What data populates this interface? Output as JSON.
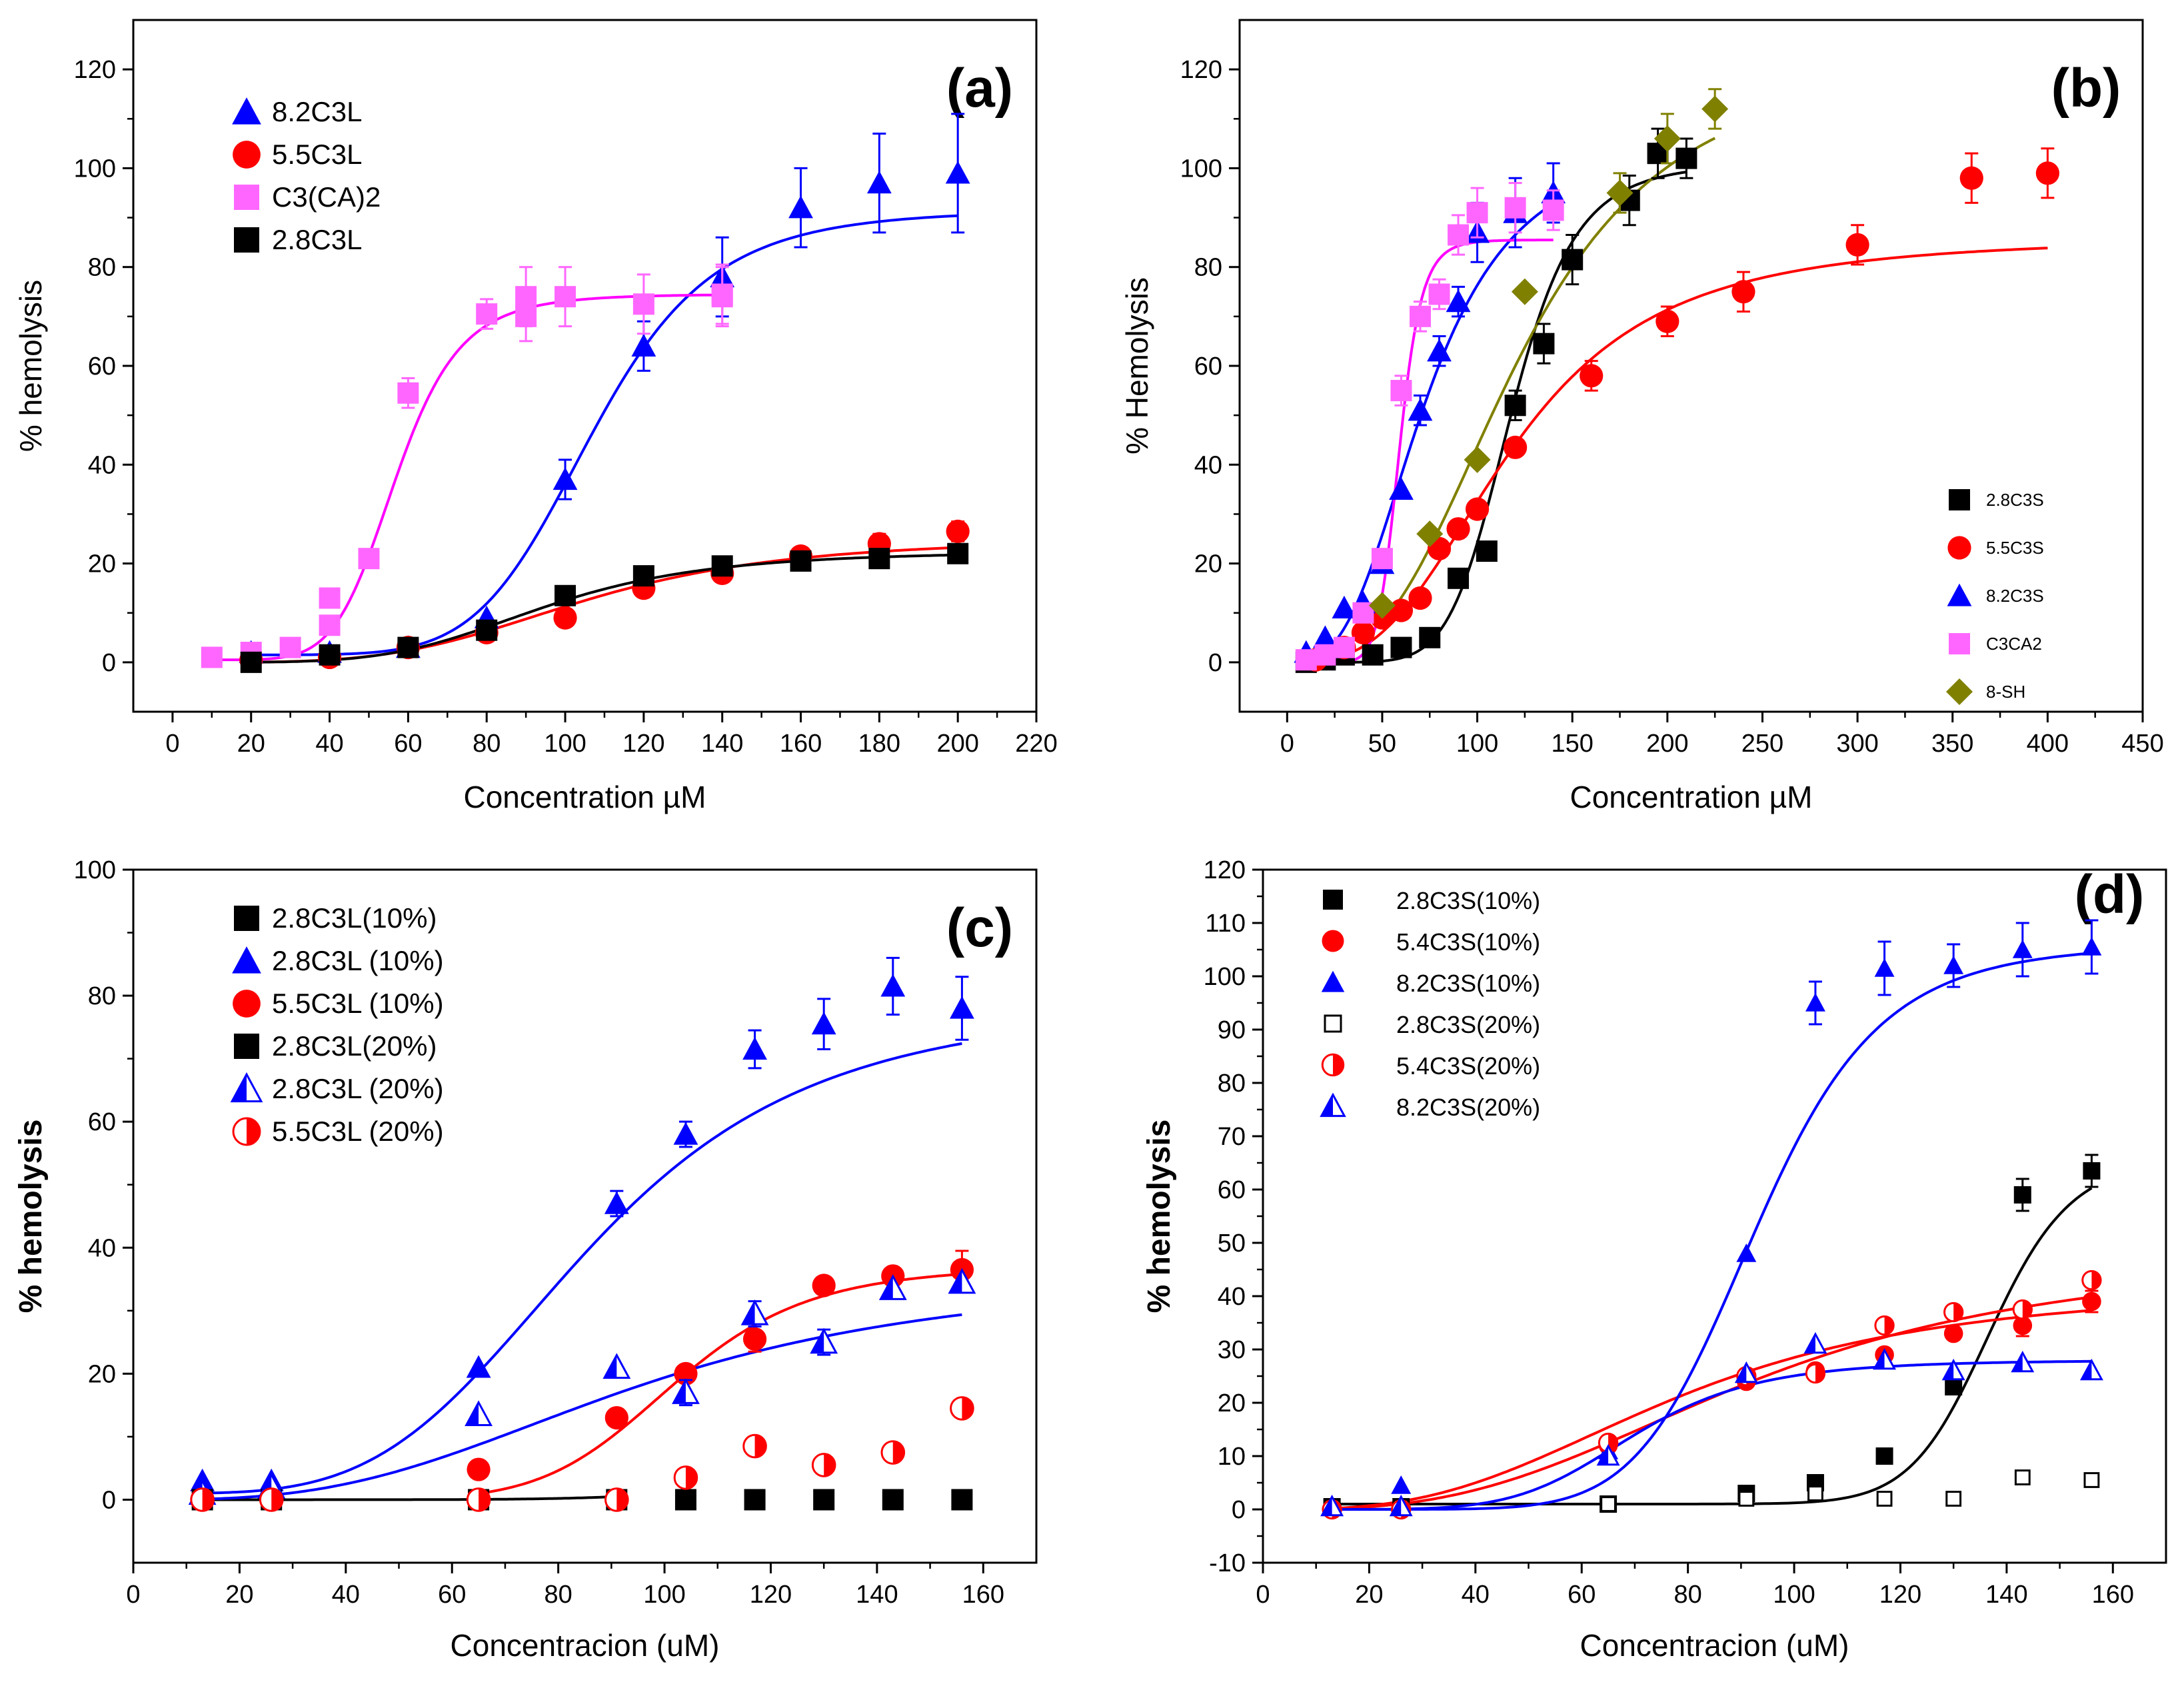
{
  "chart_data": [
    {
      "type": "scatter",
      "id": "a",
      "panel_label": "(a)",
      "xlabel": "Concentration µM",
      "ylabel": "% hemolysis",
      "xlim": [
        -10,
        220
      ],
      "ylim": [
        -10,
        130
      ],
      "xticks": [
        0,
        20,
        40,
        60,
        80,
        100,
        120,
        140,
        160,
        180,
        200,
        220
      ],
      "yticks": [
        0,
        20,
        40,
        60,
        80,
        100,
        120
      ],
      "legend": "top-left",
      "series": [
        {
          "name": "8.2C3L",
          "color": "#0000ff",
          "marker": "triangle",
          "x": [
            20,
            40,
            60,
            80,
            100,
            120,
            140,
            160,
            180,
            200
          ],
          "y": [
            2,
            2,
            3,
            9,
            37,
            64,
            78,
            92,
            97,
            99
          ],
          "err": [
            0,
            0,
            0,
            0,
            4,
            5,
            8,
            8,
            10,
            12
          ],
          "fit": {
            "bottom": 1.5,
            "top": 91.5,
            "x50": 107,
            "n": 7
          }
        },
        {
          "name": "5.5C3L",
          "color": "#ff0000",
          "marker": "circle",
          "x": [
            20,
            40,
            60,
            80,
            100,
            120,
            140,
            160,
            180,
            200
          ],
          "y": [
            0.5,
            1,
            3,
            6,
            9,
            15,
            18,
            21.5,
            24,
            26.5
          ],
          "err": [
            0,
            0,
            0,
            0,
            0,
            0,
            0,
            0,
            2,
            2
          ],
          "fit": {
            "bottom": 0,
            "top": 25,
            "x50": 105,
            "n": 4
          }
        },
        {
          "name": "C3(CA)2",
          "color": "#ff66ff",
          "fitColor": "#ff00ff",
          "marker": "square",
          "x": [
            10,
            20,
            30,
            40,
            40,
            50,
            60,
            80,
            90,
            90,
            100,
            120,
            140,
            140
          ],
          "y": [
            1,
            2,
            3,
            7.5,
            13,
            21,
            54.5,
            70.5,
            70,
            74,
            74,
            72.5,
            74.5,
            74
          ],
          "err": [
            0,
            0,
            0,
            0,
            0,
            0,
            3,
            3,
            5,
            6,
            6,
            6,
            6,
            6
          ],
          "fit": {
            "bottom": 0.5,
            "top": 74.5,
            "x50": 57,
            "n": 7
          }
        },
        {
          "name": "2.8C3L",
          "color": "#000000",
          "marker": "square",
          "x": [
            20,
            40,
            60,
            80,
            100,
            120,
            140,
            160,
            180,
            200
          ],
          "y": [
            0,
            1.5,
            3,
            6.5,
            13.5,
            17.5,
            19.5,
            20.5,
            21,
            22
          ],
          "err": [
            0,
            0,
            0,
            0,
            0,
            0,
            0,
            0,
            0,
            0
          ],
          "fit": {
            "bottom": 0,
            "top": 22.5,
            "x50": 95,
            "n": 4.5
          }
        }
      ]
    },
    {
      "type": "scatter",
      "id": "b",
      "panel_label": "(b)",
      "xlabel": "Concentration µM",
      "ylabel": "% Hemolysis",
      "xlim": [
        -25,
        450
      ],
      "ylim": [
        -10,
        130
      ],
      "xticks": [
        0,
        50,
        100,
        150,
        200,
        250,
        300,
        350,
        400,
        450
      ],
      "yticks": [
        0,
        20,
        40,
        60,
        80,
        100,
        120
      ],
      "legend": "bottom-right",
      "series": [
        {
          "name": "2.8C3S",
          "color": "#000000",
          "marker": "square",
          "x": [
            10,
            20,
            30,
            45,
            60,
            75,
            90,
            105,
            120,
            135,
            150,
            180,
            195,
            210
          ],
          "y": [
            0,
            0.5,
            1.5,
            1.5,
            3,
            5,
            17,
            22.5,
            52,
            64.5,
            81.5,
            93.5,
            103,
            102
          ],
          "err": [
            0,
            0,
            0,
            0,
            0,
            0,
            0,
            0,
            3,
            4,
            5,
            5,
            5,
            4
          ],
          "fit": {
            "bottom": 0,
            "top": 101,
            "x50": 118,
            "n": 7,
            "xmax": 210
          }
        },
        {
          "name": "5.5C3S",
          "color": "#ff0000",
          "marker": "circle",
          "x": [
            15,
            30,
            40,
            50,
            60,
            70,
            80,
            90,
            100,
            120,
            160,
            200,
            240,
            300,
            360,
            400
          ],
          "y": [
            0.5,
            3,
            6,
            9,
            10.5,
            13,
            23,
            27,
            31,
            43.5,
            58,
            69,
            75,
            84.5,
            98,
            99
          ],
          "err": [
            0,
            0,
            0,
            0,
            0,
            0,
            0,
            0,
            0,
            0,
            3,
            3,
            4,
            4,
            5,
            5
          ],
          "fit": {
            "bottom": 0,
            "top": 86,
            "x50": 118,
            "n": 3,
            "xmax": 400
          }
        },
        {
          "name": "8.2C3S",
          "color": "#0000ff",
          "marker": "triangle",
          "x": [
            10,
            20,
            30,
            40,
            50,
            60,
            70,
            80,
            90,
            100,
            120,
            140
          ],
          "y": [
            2,
            5,
            11,
            12,
            20,
            35,
            51,
            63,
            73,
            87,
            91,
            95
          ],
          "err": [
            0,
            0,
            0,
            0,
            0,
            0,
            3,
            3,
            3,
            6,
            7,
            6
          ],
          "fit": {
            "bottom": 0,
            "top": 106,
            "x50": 73,
            "n": 3,
            "xmax": 140
          }
        },
        {
          "name": "C3CA2",
          "color": "#ff66ff",
          "fitColor": "#ff00ff",
          "marker": "square",
          "x": [
            10,
            20,
            30,
            40,
            50,
            60,
            70,
            80,
            90,
            100,
            120,
            140
          ],
          "y": [
            0.5,
            1.5,
            3,
            10,
            21,
            55,
            70,
            74.5,
            86.5,
            91,
            92,
            91.5
          ],
          "err": [
            0,
            0,
            0,
            0,
            0,
            3,
            3,
            3,
            4,
            5,
            5,
            4
          ],
          "fit": {
            "bottom": 0,
            "top": 85.5,
            "x50": 59,
            "n": 10,
            "xmax": 140
          }
        },
        {
          "name": "8-SH",
          "color": "#808000",
          "marker": "diamond",
          "x": [
            50,
            75,
            100,
            125,
            175,
            200,
            225
          ],
          "y": [
            11.5,
            26,
            41,
            75,
            95,
            106,
            112
          ],
          "err": [
            0,
            0,
            0,
            0,
            4,
            5,
            4
          ],
          "fit": {
            "bottom": 0,
            "top": 123,
            "x50": 122,
            "n": 3,
            "xmax": 225
          }
        }
      ]
    },
    {
      "type": "scatter",
      "id": "c",
      "panel_label": "(c)",
      "xlabel": "Concentracion (uM)",
      "ylabel": "% hemolysis",
      "xlim": [
        0,
        170
      ],
      "ylim": [
        -10,
        100
      ],
      "xticks": [
        0,
        20,
        40,
        60,
        80,
        100,
        120,
        140,
        160
      ],
      "yticks": [
        0,
        20,
        40,
        60,
        80,
        100
      ],
      "legend": "top-left",
      "series": [
        {
          "name": "2.8C3L(10%)",
          "color": "#000000",
          "marker": "square",
          "x": [
            104,
            117,
            130,
            143,
            156
          ],
          "y": [
            0,
            0,
            0,
            0,
            0
          ],
          "err": [
            0,
            0,
            0,
            0,
            0
          ]
        },
        {
          "name": "2.8C3L (10%)",
          "color": "#0000ff",
          "marker": "triangle",
          "x": [
            13,
            26,
            65,
            91,
            104,
            117,
            130,
            143,
            156
          ],
          "y": [
            3,
            3,
            21,
            47,
            58,
            71.5,
            75.5,
            81.5,
            78
          ],
          "err": [
            0,
            0,
            0,
            2,
            2,
            3,
            4,
            4.5,
            5
          ],
          "fit": {
            "bottom": 1,
            "top": 79,
            "x50": 86,
            "n": 4
          }
        },
        {
          "name": "5.5C3L (10%)",
          "color": "#ff0000",
          "marker": "circle",
          "x": [
            65,
            91,
            104,
            117,
            130,
            143,
            156
          ],
          "y": [
            4.8,
            13,
            20,
            25.5,
            34,
            35.5,
            36.5
          ],
          "err": [
            0,
            0,
            0,
            2,
            0,
            0,
            3
          ],
          "fit": {
            "bottom": 0,
            "top": 37,
            "x50": 102,
            "n": 8
          }
        },
        {
          "name": "2.8C3L(20%)",
          "color": "#000000",
          "marker": "square",
          "x": [
            13,
            26,
            65,
            91
          ],
          "y": [
            0,
            0,
            0,
            0
          ],
          "err": [
            0,
            0,
            0,
            0
          ],
          "fit": {
            "bottom": 0,
            "top": 40,
            "x50": 170,
            "n": 7
          }
        },
        {
          "name": "2.8C3L (20%)",
          "color": "#0000ff",
          "marker": "half-triangle",
          "x": [
            13,
            26,
            65,
            91,
            104,
            117,
            130,
            143,
            156
          ],
          "y": [
            1,
            2,
            13.5,
            21,
            17,
            29.5,
            25,
            33.5,
            34.5
          ],
          "err": [
            0,
            0,
            0,
            0,
            2,
            2,
            2,
            0,
            0
          ],
          "fit": {
            "bottom": 0,
            "top": 36,
            "x50": 95,
            "n": 3
          }
        },
        {
          "name": "5.5C3L (20%)",
          "color": "#ff0000",
          "marker": "half-circle",
          "x": [
            13,
            26,
            65,
            91,
            104,
            117,
            130,
            143,
            156
          ],
          "y": [
            0,
            0,
            0,
            0,
            3.5,
            8.5,
            5.5,
            7.5,
            14.5
          ],
          "err": [
            0,
            0,
            0,
            0,
            0,
            0,
            0,
            0,
            0
          ]
        }
      ]
    },
    {
      "type": "scatter",
      "id": "d",
      "panel_label": "(d)",
      "xlabel": "Concentracion (uM)",
      "ylabel": "% hemolysis",
      "xlim": [
        0,
        170
      ],
      "ylim": [
        -10,
        120
      ],
      "xticks": [
        0,
        20,
        40,
        60,
        80,
        100,
        120,
        140,
        160
      ],
      "yticks": [
        -10,
        0,
        10,
        20,
        30,
        40,
        50,
        60,
        70,
        80,
        90,
        100,
        110,
        120
      ],
      "legend": "top-left",
      "series": [
        {
          "name": "2.8C3S(10%)",
          "color": "#000000",
          "marker": "square",
          "x": [
            13,
            26,
            65,
            91,
            104,
            117,
            130,
            143,
            156
          ],
          "y": [
            0.5,
            0.5,
            1,
            3,
            5,
            10,
            23,
            59,
            63.5
          ],
          "err": [
            0,
            0,
            0,
            0,
            0,
            0,
            0,
            3,
            3
          ],
          "fit": {
            "bottom": 1,
            "top": 66,
            "x50": 137,
            "n": 18
          }
        },
        {
          "name": "5.4C3S(10%)",
          "color": "#ff0000",
          "marker": "circle",
          "x": [
            13,
            26,
            65,
            91,
            104,
            117,
            130,
            143,
            156
          ],
          "y": [
            0,
            0,
            12,
            24,
            26,
            29,
            33,
            34.5,
            39
          ],
          "err": [
            0,
            0,
            0,
            0,
            0,
            0,
            0,
            2,
            2
          ],
          "fit": {
            "bottom": 0,
            "top": 42,
            "x50": 78,
            "n": 3
          }
        },
        {
          "name": "8.2C3S(10%)",
          "color": "#0000ff",
          "marker": "triangle",
          "x": [
            13,
            26,
            65,
            91,
            104,
            117,
            130,
            143,
            156
          ],
          "y": [
            0.5,
            4.5,
            11,
            48,
            95,
            101.5,
            102,
            105,
            105.5
          ],
          "err": [
            0,
            0,
            0,
            0,
            4,
            5,
            4,
            5,
            5
          ],
          "fit": {
            "bottom": 0,
            "top": 106,
            "x50": 93,
            "n": 8
          }
        },
        {
          "name": "2.8C3S(20%)",
          "color": "#000000",
          "marker": "open-square",
          "x": [
            13,
            26,
            65,
            91,
            104,
            117,
            130,
            143,
            156
          ],
          "y": [
            0.5,
            0.5,
            1,
            2,
            3,
            2,
            2,
            6,
            5.5
          ],
          "err": [
            0,
            0,
            0,
            0,
            0,
            0,
            0,
            0,
            0
          ]
        },
        {
          "name": "5.4C3S(20%)",
          "color": "#ff0000",
          "marker": "half-circle",
          "x": [
            13,
            26,
            65,
            91,
            104,
            117,
            130,
            143,
            156
          ],
          "y": [
            0,
            0,
            12.5,
            25,
            25.5,
            34.5,
            37,
            37.5,
            43
          ],
          "err": [
            0,
            0,
            0,
            0,
            0,
            0,
            0,
            0,
            0
          ],
          "fit": {
            "bottom": 0,
            "top": 48,
            "x50": 92,
            "n": 3
          }
        },
        {
          "name": "8.2C3S(20%)",
          "color": "#0000ff",
          "marker": "half-triangle",
          "x": [
            13,
            26,
            65,
            91,
            104,
            117,
            130,
            143,
            156
          ],
          "y": [
            0.5,
            0.5,
            10,
            25.5,
            31,
            28,
            26,
            27.5,
            26
          ],
          "err": [
            0,
            0,
            0,
            0,
            0,
            0,
            0,
            0,
            0
          ],
          "fit": {
            "bottom": 0,
            "top": 28,
            "x50": 70,
            "n": 6
          }
        }
      ]
    }
  ]
}
